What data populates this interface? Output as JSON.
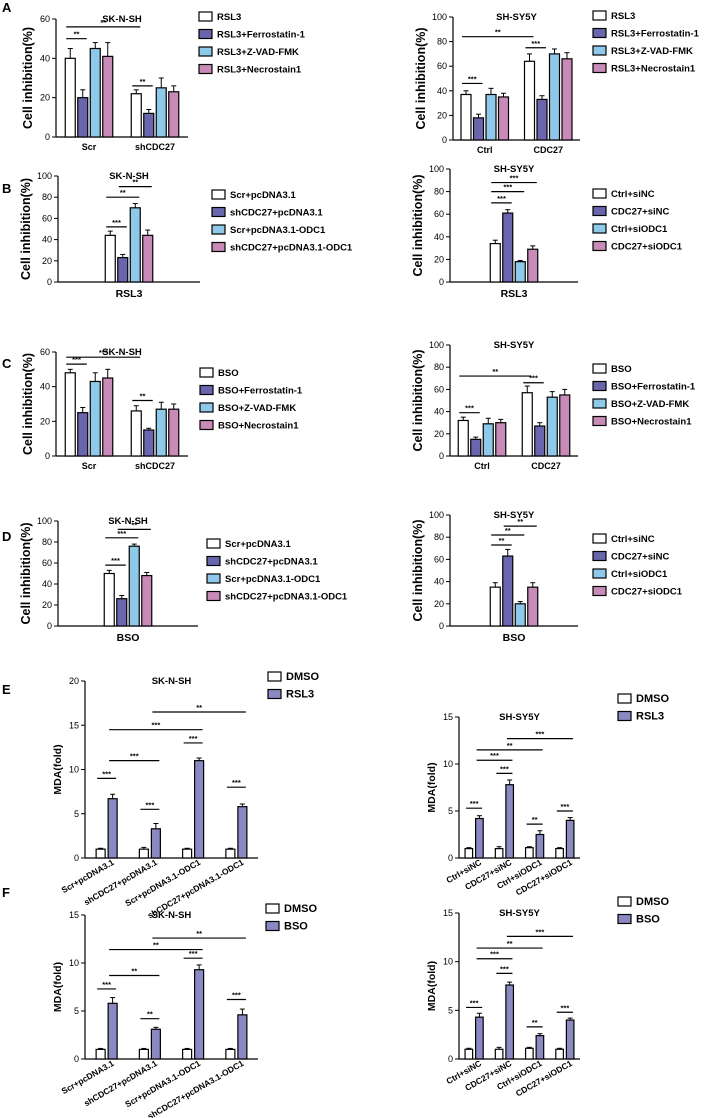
{
  "chart_data": [
    {
      "panel": "A",
      "title": "SK-N-SH",
      "type": "bar",
      "ylabel": "Cell inhibition(%)",
      "ylim": [
        0,
        60
      ],
      "yticks": [
        0,
        20,
        40,
        60
      ],
      "categories": [
        "Scr",
        "shCDC27"
      ],
      "series": [
        {
          "name": "RSL3",
          "values": [
            40,
            22
          ],
          "err": [
            5,
            2
          ]
        },
        {
          "name": "RSL3+Ferrostatin-1",
          "values": [
            20,
            12
          ],
          "err": [
            4,
            2
          ]
        },
        {
          "name": "RSL3+Z-VAD-FMK",
          "values": [
            45,
            25
          ],
          "err": [
            3,
            5
          ]
        },
        {
          "name": "RSL3+Necrostain1",
          "values": [
            41,
            23
          ],
          "err": [
            7,
            3
          ]
        }
      ],
      "sig": [
        {
          "g1": 0,
          "s1": 0,
          "g2": 0,
          "s2": 1,
          "label": "**",
          "y": 50
        },
        {
          "g1": 0,
          "s1": 0,
          "g2": 1,
          "s2": 0,
          "label": "**",
          "y": 56
        },
        {
          "g1": 1,
          "s1": 0,
          "g2": 1,
          "s2": 1,
          "label": "**",
          "y": 26
        }
      ]
    },
    {
      "panel": "",
      "title": "SH-SY5Y",
      "type": "bar",
      "ylabel": "Cell inhibition(%)",
      "ylim": [
        0,
        100
      ],
      "yticks": [
        0,
        20,
        40,
        60,
        80,
        100
      ],
      "categories": [
        "Ctrl",
        "CDC27"
      ],
      "series": [
        {
          "name": "RSL3",
          "values": [
            37,
            64
          ],
          "err": [
            3,
            6
          ]
        },
        {
          "name": "RSL3+Ferrostatin-1",
          "values": [
            18,
            33
          ],
          "err": [
            3,
            3
          ]
        },
        {
          "name": "RSL3+Z-VAD-FMK",
          "values": [
            37,
            70
          ],
          "err": [
            5,
            4
          ]
        },
        {
          "name": "RSL3+Necrostain1",
          "values": [
            35,
            66
          ],
          "err": [
            3,
            5
          ]
        }
      ],
      "sig": [
        {
          "g1": 0,
          "s1": 0,
          "g2": 0,
          "s2": 1,
          "label": "***",
          "y": 46
        },
        {
          "g1": 0,
          "s1": 0,
          "g2": 1,
          "s2": 0,
          "label": "**",
          "y": 84
        },
        {
          "g1": 1,
          "s1": 0,
          "g2": 1,
          "s2": 1,
          "label": "***",
          "y": 75
        }
      ]
    },
    {
      "panel": "B",
      "title": "SK-N-SH",
      "type": "bar",
      "ylabel": "Cell inhibition(%)",
      "ylim": [
        0,
        100
      ],
      "yticks": [
        0,
        20,
        40,
        60,
        80,
        100
      ],
      "categories": [
        "RSL3"
      ],
      "series": [
        {
          "name": "Scr+pcDNA3.1",
          "values": [
            44
          ],
          "err": [
            4
          ]
        },
        {
          "name": "shCDC27+pcDNA3.1",
          "values": [
            23
          ],
          "err": [
            3
          ]
        },
        {
          "name": "Scr+pcDNA3.1-ODC1",
          "values": [
            70
          ],
          "err": [
            4
          ]
        },
        {
          "name": "shCDC27+pcDNA3.1-ODC1",
          "values": [
            44
          ],
          "err": [
            5
          ]
        }
      ],
      "sig": [
        {
          "g1": 0,
          "s1": 0,
          "g2": 0,
          "s2": 1,
          "label": "***",
          "y": 52
        },
        {
          "g1": 0,
          "s1": 0,
          "g2": 0,
          "s2": 2,
          "label": "**",
          "y": 80
        },
        {
          "g1": 0,
          "s1": 1,
          "g2": 0,
          "s2": 3,
          "label": "**",
          "y": 90
        }
      ]
    },
    {
      "panel": "",
      "title": "SH-SY5Y",
      "type": "bar",
      "ylabel": "Cell inhibition(%)",
      "ylim": [
        0,
        100
      ],
      "yticks": [
        0,
        20,
        40,
        60,
        80,
        100
      ],
      "categories": [
        "RSL3"
      ],
      "series": [
        {
          "name": "Ctrl+siNC",
          "values": [
            34
          ],
          "err": [
            3
          ]
        },
        {
          "name": "CDC27+siNC",
          "values": [
            61
          ],
          "err": [
            3
          ]
        },
        {
          "name": "Ctrl+siODC1",
          "values": [
            18
          ],
          "err": [
            1
          ]
        },
        {
          "name": "CDC27+siODC1",
          "values": [
            29
          ],
          "err": [
            3
          ]
        }
      ],
      "sig": [
        {
          "g1": 0,
          "s1": 0,
          "g2": 0,
          "s2": 1,
          "label": "***",
          "y": 70
        },
        {
          "g1": 0,
          "s1": 0,
          "g2": 0,
          "s2": 2,
          "label": "***",
          "y": 80
        },
        {
          "g1": 0,
          "s1": 0,
          "g2": 0,
          "s2": 3,
          "label": "***",
          "y": 88
        }
      ]
    },
    {
      "panel": "C",
      "title": "SK-N-SH",
      "type": "bar",
      "ylabel": "Cell inhibition(%)",
      "ylim": [
        0,
        60
      ],
      "yticks": [
        0,
        20,
        40,
        60
      ],
      "categories": [
        "Scr",
        "shCDC27"
      ],
      "series": [
        {
          "name": "BSO",
          "values": [
            48,
            26
          ],
          "err": [
            2,
            3
          ]
        },
        {
          "name": "BSO+Ferrostatin-1",
          "values": [
            25,
            15
          ],
          "err": [
            3,
            1
          ]
        },
        {
          "name": "BSO+Z-VAD-FMK",
          "values": [
            43,
            27
          ],
          "err": [
            5,
            4
          ]
        },
        {
          "name": "BSO+Necrostain1",
          "values": [
            45,
            27
          ],
          "err": [
            5,
            3
          ]
        }
      ],
      "sig": [
        {
          "g1": 0,
          "s1": 0,
          "g2": 0,
          "s2": 1,
          "label": "***",
          "y": 53
        },
        {
          "g1": 0,
          "s1": 0,
          "g2": 1,
          "s2": 0,
          "label": "***",
          "y": 57
        },
        {
          "g1": 1,
          "s1": 0,
          "g2": 1,
          "s2": 1,
          "label": "**",
          "y": 32
        }
      ]
    },
    {
      "panel": "",
      "title": "SH-SY5Y",
      "type": "bar",
      "ylabel": "Cell inhibition(%)",
      "ylim": [
        0,
        100
      ],
      "yticks": [
        0,
        20,
        40,
        60,
        80,
        100
      ],
      "categories": [
        "Ctrl",
        "CDC27"
      ],
      "series": [
        {
          "name": "BSO",
          "values": [
            32,
            57
          ],
          "err": [
            3,
            6
          ]
        },
        {
          "name": "BSO+Ferrostatin-1",
          "values": [
            15,
            27
          ],
          "err": [
            2,
            3
          ]
        },
        {
          "name": "BSO+Z-VAD-FMK",
          "values": [
            29,
            53
          ],
          "err": [
            5,
            5
          ]
        },
        {
          "name": "BSO+Necrostain1",
          "values": [
            30,
            55
          ],
          "err": [
            3,
            5
          ]
        }
      ],
      "sig": [
        {
          "g1": 0,
          "s1": 0,
          "g2": 0,
          "s2": 1,
          "label": "***",
          "y": 39
        },
        {
          "g1": 0,
          "s1": 0,
          "g2": 1,
          "s2": 0,
          "label": "**",
          "y": 72
        },
        {
          "g1": 1,
          "s1": 0,
          "g2": 1,
          "s2": 1,
          "label": "***",
          "y": 66
        }
      ]
    },
    {
      "panel": "D",
      "title": "SK-N-SH",
      "type": "bar",
      "ylabel": "Cell inhibition(%)",
      "ylim": [
        0,
        100
      ],
      "yticks": [
        0,
        20,
        40,
        60,
        80,
        100
      ],
      "categories": [
        "BSO"
      ],
      "series": [
        {
          "name": "Scr+pcDNA3.1",
          "values": [
            50
          ],
          "err": [
            3
          ]
        },
        {
          "name": "shCDC27+pcDNA3.1",
          "values": [
            26
          ],
          "err": [
            3
          ]
        },
        {
          "name": "Scr+pcDNA3.1-ODC1",
          "values": [
            76
          ],
          "err": [
            2
          ]
        },
        {
          "name": "shCDC27+pcDNA3.1-ODC1",
          "values": [
            48
          ],
          "err": [
            3
          ]
        }
      ],
      "sig": [
        {
          "g1": 0,
          "s1": 0,
          "g2": 0,
          "s2": 1,
          "label": "***",
          "y": 58
        },
        {
          "g1": 0,
          "s1": 0,
          "g2": 0,
          "s2": 2,
          "label": "***",
          "y": 84
        },
        {
          "g1": 0,
          "s1": 1,
          "g2": 0,
          "s2": 3,
          "label": "**",
          "y": 92
        }
      ]
    },
    {
      "panel": "",
      "title": "SH-SY5Y",
      "type": "bar",
      "ylabel": "Cell inhibition(%)",
      "ylim": [
        0,
        100
      ],
      "yticks": [
        0,
        20,
        40,
        60,
        80,
        100
      ],
      "categories": [
        "BSO"
      ],
      "series": [
        {
          "name": "Ctrl+siNC",
          "values": [
            35
          ],
          "err": [
            4
          ]
        },
        {
          "name": "CDC27+siNC",
          "values": [
            63
          ],
          "err": [
            6
          ]
        },
        {
          "name": "Ctrl+siODC1",
          "values": [
            20
          ],
          "err": [
            2
          ]
        },
        {
          "name": "CDC27+siODC1",
          "values": [
            35
          ],
          "err": [
            4
          ]
        }
      ],
      "sig": [
        {
          "g1": 0,
          "s1": 0,
          "g2": 0,
          "s2": 1,
          "label": "**",
          "y": 73
        },
        {
          "g1": 0,
          "s1": 0,
          "g2": 0,
          "s2": 2,
          "label": "**",
          "y": 82
        },
        {
          "g1": 0,
          "s1": 1,
          "g2": 0,
          "s2": 3,
          "label": "**",
          "y": 90
        }
      ]
    },
    {
      "panel": "E",
      "title": "SK-N-SH",
      "type": "bar",
      "ylabel": "MDA(fold)",
      "ylim": [
        0,
        20
      ],
      "yticks": [
        0,
        5,
        10,
        15,
        20
      ],
      "categories": [
        "Scr+pcDNA3.1",
        "shCDC27+pcDNA3.1",
        "Scr+pcDNA3.1-ODC1",
        "shCDC27+pcDNA3.1-ODC1"
      ],
      "series": [
        {
          "name": "DMSO",
          "values": [
            1,
            1,
            1,
            1
          ],
          "err": [
            0.1,
            0.2,
            0.1,
            0.1
          ]
        },
        {
          "name": "RSL3",
          "values": [
            6.7,
            3.3,
            11,
            5.8
          ],
          "err": [
            0.5,
            0.6,
            0.3,
            0.3
          ]
        }
      ],
      "sig": [
        {
          "g1": 0,
          "s1": 0,
          "g2": 0,
          "s2": 1,
          "label": "***",
          "y": 9
        },
        {
          "g1": 1,
          "s1": 0,
          "g2": 1,
          "s2": 1,
          "label": "***",
          "y": 5.5
        },
        {
          "g1": 2,
          "s1": 0,
          "g2": 2,
          "s2": 1,
          "label": "***",
          "y": 13
        },
        {
          "g1": 3,
          "s1": 0,
          "g2": 3,
          "s2": 1,
          "label": "***",
          "y": 8
        },
        {
          "g1": 0,
          "s1": 1,
          "g2": 1,
          "s2": 1,
          "label": "***",
          "y": 11
        },
        {
          "g1": 0,
          "s1": 1,
          "g2": 2,
          "s2": 1,
          "label": "***",
          "y": 14.5
        },
        {
          "g1": 1,
          "s1": 1,
          "g2": 3,
          "s2": 1,
          "label": "**",
          "y": 16.5
        }
      ]
    },
    {
      "panel": "",
      "title": "SH-SY5Y",
      "type": "bar",
      "ylabel": "MDA(fold)",
      "ylim": [
        0,
        15
      ],
      "yticks": [
        0,
        5,
        10,
        15
      ],
      "categories": [
        "Ctrl+siNC",
        "CDC27+siNC",
        "Ctrl+siODC1",
        "CDC27+siODC1"
      ],
      "series": [
        {
          "name": "DMSO",
          "values": [
            1,
            1,
            1.1,
            1
          ],
          "err": [
            0.1,
            0.2,
            0.1,
            0.1
          ]
        },
        {
          "name": "RSL3",
          "values": [
            4.2,
            7.8,
            2.5,
            4
          ],
          "err": [
            0.3,
            0.5,
            0.4,
            0.3
          ]
        }
      ],
      "sig": [
        {
          "g1": 0,
          "s1": 0,
          "g2": 0,
          "s2": 1,
          "label": "***",
          "y": 5.3
        },
        {
          "g1": 1,
          "s1": 0,
          "g2": 1,
          "s2": 1,
          "label": "***",
          "y": 9
        },
        {
          "g1": 2,
          "s1": 0,
          "g2": 2,
          "s2": 1,
          "label": "**",
          "y": 3.6
        },
        {
          "g1": 3,
          "s1": 0,
          "g2": 3,
          "s2": 1,
          "label": "***",
          "y": 5
        },
        {
          "g1": 0,
          "s1": 1,
          "g2": 1,
          "s2": 1,
          "label": "***",
          "y": 10.4
        },
        {
          "g1": 0,
          "s1": 1,
          "g2": 2,
          "s2": 1,
          "label": "**",
          "y": 11.5
        },
        {
          "g1": 1,
          "s1": 1,
          "g2": 3,
          "s2": 1,
          "label": "***",
          "y": 12.7
        }
      ]
    },
    {
      "panel": "F",
      "title": "SK-N-SH",
      "type": "bar",
      "ylabel": "MDA(fold)",
      "ylim": [
        0,
        15
      ],
      "yticks": [
        0,
        5,
        10,
        15
      ],
      "categories": [
        "Scr+pcDNA3.1",
        "shCDC27+pcDNA3.1",
        "Scr+pcDNA3.1-ODC1",
        "shCDC27+pcDNA3.1-ODC1"
      ],
      "series": [
        {
          "name": "DMSO",
          "values": [
            1,
            1,
            1,
            1
          ],
          "err": [
            0.1,
            0.1,
            0.1,
            0.1
          ]
        },
        {
          "name": "BSO",
          "values": [
            5.8,
            3.1,
            9.3,
            4.6
          ],
          "err": [
            0.6,
            0.2,
            0.5,
            0.6
          ]
        }
      ],
      "sig": [
        {
          "g1": 0,
          "s1": 0,
          "g2": 0,
          "s2": 1,
          "label": "***",
          "y": 7.3
        },
        {
          "g1": 1,
          "s1": 0,
          "g2": 1,
          "s2": 1,
          "label": "**",
          "y": 4.2
        },
        {
          "g1": 2,
          "s1": 0,
          "g2": 2,
          "s2": 1,
          "label": "***",
          "y": 10.5
        },
        {
          "g1": 3,
          "s1": 0,
          "g2": 3,
          "s2": 1,
          "label": "***",
          "y": 6.2
        },
        {
          "g1": 0,
          "s1": 1,
          "g2": 1,
          "s2": 1,
          "label": "**",
          "y": 8.7
        },
        {
          "g1": 0,
          "s1": 1,
          "g2": 2,
          "s2": 1,
          "label": "**",
          "y": 11.4
        },
        {
          "g1": 1,
          "s1": 1,
          "g2": 3,
          "s2": 1,
          "label": "**",
          "y": 12.6
        }
      ]
    },
    {
      "panel": "",
      "title": "SH-SY5Y",
      "type": "bar",
      "ylabel": "MDA(fold)",
      "ylim": [
        0,
        15
      ],
      "yticks": [
        0,
        5,
        10,
        15
      ],
      "categories": [
        "Ctrl+siNC",
        "CDC27+siNC",
        "Ctrl+siODC1",
        "CDC27+siODC1"
      ],
      "series": [
        {
          "name": "DMSO",
          "values": [
            1,
            1,
            1.1,
            1
          ],
          "err": [
            0.1,
            0.2,
            0.1,
            0.1
          ]
        },
        {
          "name": "BSO",
          "values": [
            4.3,
            7.6,
            2.4,
            4
          ],
          "err": [
            0.4,
            0.3,
            0.2,
            0.2
          ]
        }
      ],
      "sig": [
        {
          "g1": 0,
          "s1": 0,
          "g2": 0,
          "s2": 1,
          "label": "***",
          "y": 5.3
        },
        {
          "g1": 1,
          "s1": 0,
          "g2": 1,
          "s2": 1,
          "label": "***",
          "y": 8.8
        },
        {
          "g1": 2,
          "s1": 0,
          "g2": 2,
          "s2": 1,
          "label": "**",
          "y": 3.3
        },
        {
          "g1": 3,
          "s1": 0,
          "g2": 3,
          "s2": 1,
          "label": "***",
          "y": 4.8
        },
        {
          "g1": 0,
          "s1": 1,
          "g2": 1,
          "s2": 1,
          "label": "***",
          "y": 10.3
        },
        {
          "g1": 0,
          "s1": 1,
          "g2": 2,
          "s2": 1,
          "label": "**",
          "y": 11.4
        },
        {
          "g1": 1,
          "s1": 1,
          "g2": 3,
          "s2": 1,
          "label": "***",
          "y": 12.6
        }
      ]
    }
  ],
  "colors": {
    "four_series": [
      "#ffffff",
      "#6a66ae",
      "#8fc9ea",
      "#c88bb7"
    ],
    "two_series": [
      "#ffffff",
      "#8a89c2"
    ]
  }
}
